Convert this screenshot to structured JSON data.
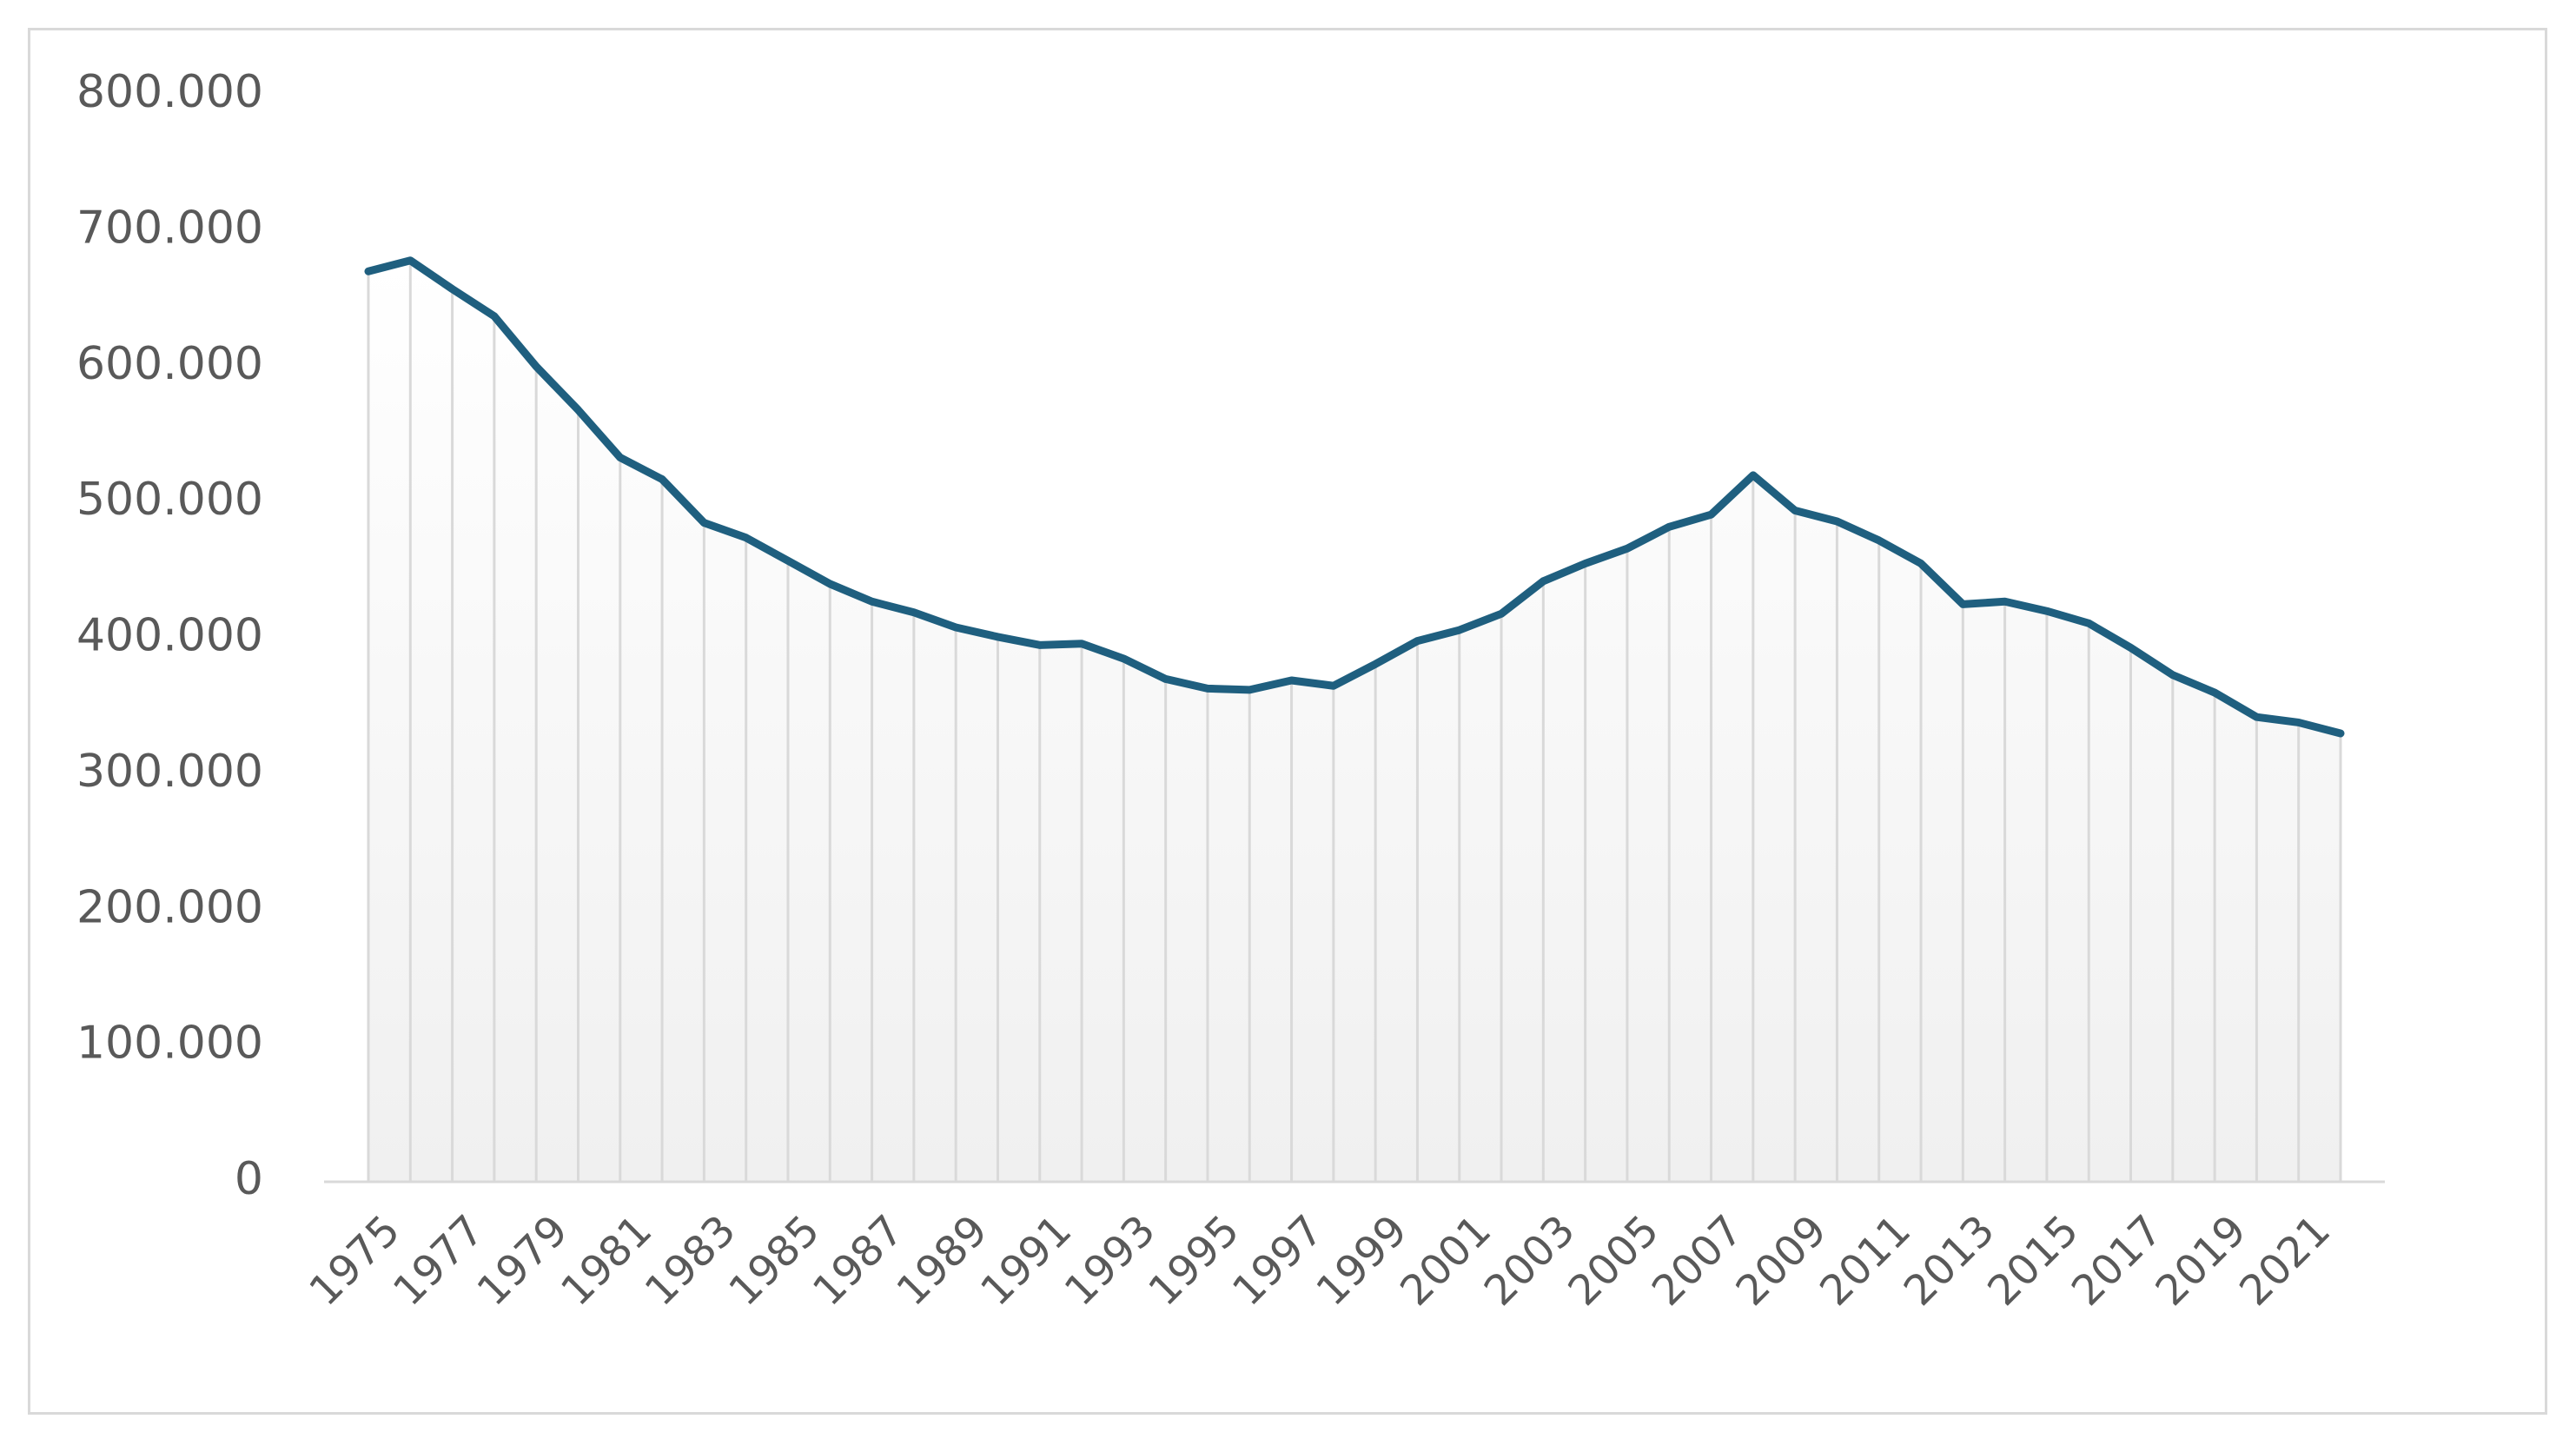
{
  "chart_data": {
    "type": "area",
    "title": "",
    "xlabel": "",
    "ylabel": "",
    "x": [
      1975,
      1976,
      1977,
      1978,
      1979,
      1980,
      1981,
      1982,
      1983,
      1984,
      1985,
      1986,
      1987,
      1988,
      1989,
      1990,
      1991,
      1992,
      1993,
      1994,
      1995,
      1996,
      1997,
      1998,
      1999,
      2000,
      2001,
      2002,
      2003,
      2004,
      2005,
      2006,
      2007,
      2008,
      2009,
      2010,
      2011,
      2012,
      2013,
      2014,
      2015,
      2016,
      2017,
      2018,
      2019,
      2020,
      2021,
      2022
    ],
    "x_tick_labels": [
      "1975",
      "1977",
      "1979",
      "1981",
      "1983",
      "1985",
      "1987",
      "1989",
      "1991",
      "1993",
      "1995",
      "1997",
      "1999",
      "2001",
      "2003",
      "2005",
      "2007",
      "2009",
      "2011",
      "2013",
      "2015",
      "2017",
      "2019",
      "2021"
    ],
    "series": [
      {
        "values": [
          670000,
          678000,
          657000,
          637000,
          600000,
          568000,
          533000,
          517000,
          485000,
          474000,
          457000,
          440000,
          427000,
          419000,
          408000,
          401000,
          395000,
          396000,
          385000,
          370000,
          363000,
          362000,
          369000,
          365000,
          381000,
          398000,
          406000,
          418000,
          442000,
          455000,
          466000,
          482000,
          491000,
          520000,
          494000,
          486000,
          472000,
          455000,
          425000,
          427000,
          420000,
          411000,
          393000,
          373000,
          360000,
          342000,
          338000,
          330000
        ]
      }
    ],
    "ylim": [
      0,
      800000
    ],
    "y_ticks": [
      0,
      100000,
      200000,
      300000,
      400000,
      500000,
      600000,
      700000,
      800000
    ],
    "y_tick_labels": [
      "0",
      "100.000",
      "200.000",
      "300.000",
      "400.000",
      "500.000",
      "600.000",
      "700.000",
      "800.000"
    ],
    "grid": "vertical drop lines at each data point",
    "legend": "none",
    "colors": {
      "line": "#1f5f7f",
      "drop_lines": "#d9d9d9",
      "area_top": "#ffffff",
      "area_bottom": "#f0f0f0",
      "axis": "#d9d9d9",
      "tick_text": "#595959",
      "frame": "#d9d9d9"
    }
  }
}
